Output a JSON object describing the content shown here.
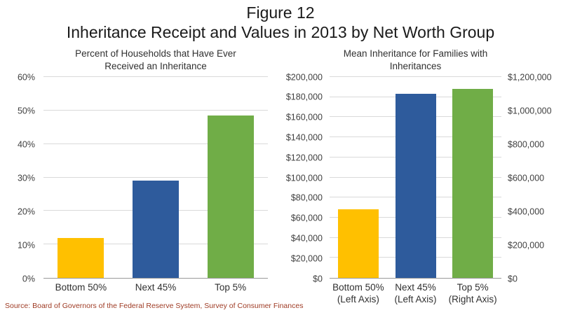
{
  "title": {
    "line1": "Figure 12",
    "line2": "Inheritance Receipt and Values in 2013 by Net Worth Group"
  },
  "source": "Source: Board of Governors of the Federal Reserve System, Survey of Consumer Finances",
  "colors": {
    "orange": "#FFC000",
    "blue": "#2E5B9C",
    "green": "#70AD47",
    "gridline": "#D9D9D9",
    "axis_line": "#9A9A9A",
    "source_text": "#9E3A23"
  },
  "chart_data": [
    {
      "type": "bar",
      "title": "Percent of Households that Have Ever Received an Inheritance",
      "title_lines": [
        "Percent of Households that Have Ever",
        "Received an Inheritance"
      ],
      "categories": [
        "Bottom 50%",
        "Next 45%",
        "Top 5%"
      ],
      "category_lines": [
        [
          "Bottom 50%"
        ],
        [
          "Next 45%"
        ],
        [
          "Top 5%"
        ]
      ],
      "values": [
        12,
        29,
        48.5
      ],
      "bar_colors": [
        "#FFC000",
        "#2E5B9C",
        "#70AD47"
      ],
      "ylim": [
        0,
        60
      ],
      "ytick_step": 10,
      "ytick_format": "percent",
      "grid": true,
      "legend": "none"
    },
    {
      "type": "bar",
      "title": "Mean Inheritance for Families with Inheritances",
      "title_lines": [
        "Mean Inheritance for Families with",
        "Inheritances"
      ],
      "categories": [
        "Bottom 50% (Left Axis)",
        "Next 45% (Left Axis)",
        "Top 5% (Right Axis)"
      ],
      "category_lines": [
        [
          "Bottom 50%",
          "(Left Axis)"
        ],
        [
          "Next 45%",
          "(Left Axis)"
        ],
        [
          "Top 5%",
          "(Right Axis)"
        ]
      ],
      "values": [
        68000,
        183000,
        1130000
      ],
      "axis_assignment": [
        "left",
        "left",
        "right"
      ],
      "bar_colors": [
        "#FFC000",
        "#2E5B9C",
        "#70AD47"
      ],
      "left_axis": {
        "ylim": [
          0,
          200000
        ],
        "step": 20000,
        "format": "dollar"
      },
      "right_axis": {
        "ylim": [
          0,
          1200000
        ],
        "step": 200000,
        "format": "dollar"
      },
      "grid": true,
      "legend": "none"
    }
  ]
}
